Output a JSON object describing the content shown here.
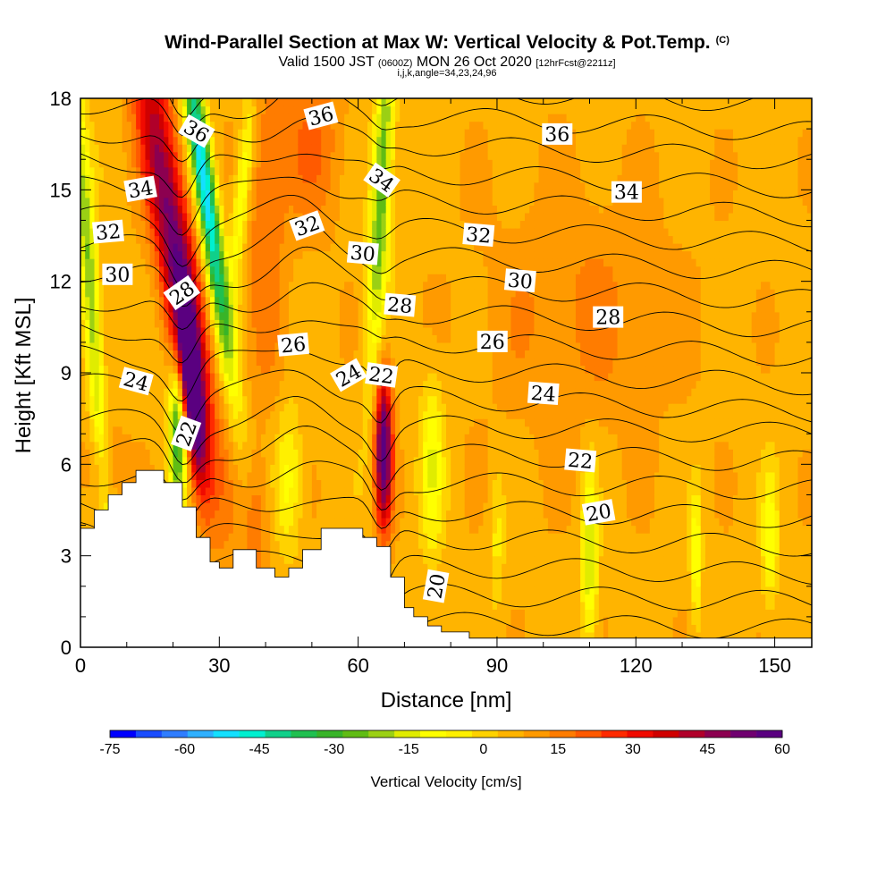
{
  "title": "Wind-Parallel Section at Max W: Vertical Velocity & Pot.Temp.",
  "title_badge": "(C)",
  "subtitle_main": "Valid 1500 JST",
  "subtitle_utc": "(0600Z)",
  "subtitle_date": "MON 26 Oct 2020",
  "subtitle_fcst": "[12hrFcst@2211z]",
  "subtitle_params": "i,j,k,angle=34,23,24,96",
  "chart_data": {
    "type": "heatmap",
    "xlabel": "Distance [nm]",
    "ylabel": "Height [Kft MSL]",
    "xlim": [
      0,
      158
    ],
    "ylim": [
      0,
      18
    ],
    "xticks": [
      0,
      30,
      60,
      90,
      120,
      150
    ],
    "yticks": [
      0,
      3,
      6,
      9,
      12,
      15,
      18
    ],
    "colorbar": {
      "label": "Vertical Velocity [cm/s]",
      "ticks": [
        -75,
        -60,
        -45,
        -30,
        -15,
        0,
        15,
        30,
        45,
        60
      ],
      "range": [
        -75,
        60
      ],
      "colors": [
        "#0000ff",
        "#1a4dff",
        "#2f7dff",
        "#2fb0ff",
        "#14e0ff",
        "#00f0d0",
        "#10d08a",
        "#20c050",
        "#38b428",
        "#60bc14",
        "#9bd014",
        "#e0ec00",
        "#ffff00",
        "#fff000",
        "#ffd200",
        "#ffb400",
        "#ff9a00",
        "#ff7c00",
        "#ff5a00",
        "#ff2a00",
        "#f00a00",
        "#d00000",
        "#b0002a",
        "#8c0050",
        "#700070",
        "#5a0080"
      ]
    },
    "theta_contour_labels": [
      "20",
      "22",
      "24",
      "26",
      "28",
      "30",
      "32",
      "34",
      "36"
    ],
    "theta_levels": [
      18,
      19,
      20,
      21,
      22,
      23,
      24,
      25,
      26,
      27,
      28,
      29,
      30,
      31,
      32,
      33,
      34,
      35,
      36,
      37
    ],
    "terrain_profile": [
      [
        0,
        3.9
      ],
      [
        3,
        3.9
      ],
      [
        3,
        4.5
      ],
      [
        6,
        4.5
      ],
      [
        6,
        5.0
      ],
      [
        9,
        5.0
      ],
      [
        9,
        5.4
      ],
      [
        12,
        5.4
      ],
      [
        12,
        5.8
      ],
      [
        18,
        5.8
      ],
      [
        18,
        5.4
      ],
      [
        22,
        5.4
      ],
      [
        22,
        4.6
      ],
      [
        25,
        4.6
      ],
      [
        25,
        3.6
      ],
      [
        28,
        3.6
      ],
      [
        28,
        2.8
      ],
      [
        30,
        2.8
      ],
      [
        30,
        2.6
      ],
      [
        33,
        2.6
      ],
      [
        33,
        3.2
      ],
      [
        38,
        3.2
      ],
      [
        38,
        2.6
      ],
      [
        42,
        2.6
      ],
      [
        42,
        2.3
      ],
      [
        45,
        2.3
      ],
      [
        45,
        2.6
      ],
      [
        48,
        2.6
      ],
      [
        48,
        3.2
      ],
      [
        52,
        3.2
      ],
      [
        52,
        3.9
      ],
      [
        61,
        3.9
      ],
      [
        61,
        3.6
      ],
      [
        64,
        3.6
      ],
      [
        64,
        3.3
      ],
      [
        67,
        3.3
      ],
      [
        67,
        2.3
      ],
      [
        70,
        2.3
      ],
      [
        70,
        1.3
      ],
      [
        72,
        1.3
      ],
      [
        72,
        1.0
      ],
      [
        75,
        1.0
      ],
      [
        75,
        0.7
      ],
      [
        78,
        0.7
      ],
      [
        78,
        0.5
      ],
      [
        84,
        0.5
      ],
      [
        84,
        0.3
      ],
      [
        158,
        0.3
      ]
    ],
    "w_features": [
      {
        "x": 20,
        "z": 13.5,
        "w": 45,
        "sx": 3,
        "sz": 5,
        "tilt": -0.35
      },
      {
        "x": 24,
        "z": 8.5,
        "w": 55,
        "sx": 1.6,
        "sz": 2.2,
        "tilt": -0.2
      },
      {
        "x": 27,
        "z": 15,
        "w": -60,
        "sx": 1.6,
        "sz": 4,
        "tilt": -0.3
      },
      {
        "x": 21,
        "z": 7,
        "w": -40,
        "sx": 1.4,
        "sz": 1.8,
        "tilt": 0
      },
      {
        "x": 2,
        "z": 12,
        "w": -30,
        "sx": 1.3,
        "sz": 5,
        "tilt": -0.15
      },
      {
        "x": 35,
        "z": 15,
        "w": -20,
        "sx": 1.2,
        "sz": 2.5,
        "tilt": 0.2
      },
      {
        "x": 40,
        "z": 14,
        "w": 12,
        "sx": 3,
        "sz": 4,
        "tilt": 0
      },
      {
        "x": 50,
        "z": 16.5,
        "w": 12,
        "sx": 5,
        "sz": 2,
        "tilt": 0
      },
      {
        "x": 65,
        "z": 15,
        "w": -35,
        "sx": 1.5,
        "sz": 4,
        "tilt": 0.1
      },
      {
        "x": 65.5,
        "z": 6.5,
        "w": 55,
        "sx": 1.3,
        "sz": 1.8,
        "tilt": 0
      },
      {
        "x": 45,
        "z": 5.5,
        "w": -15,
        "sx": 2,
        "sz": 1.6,
        "tilt": 0
      },
      {
        "x": 38,
        "z": 4,
        "w": 12,
        "sx": 2,
        "sz": 1.5,
        "tilt": 0
      },
      {
        "x": 76,
        "z": 6,
        "w": -18,
        "sx": 1.8,
        "sz": 2,
        "tilt": 0
      },
      {
        "x": 90,
        "z": 3.5,
        "w": -10,
        "sx": 1,
        "sz": 1.5,
        "tilt": 0
      },
      {
        "x": 110,
        "z": 3,
        "w": -25,
        "sx": 1.2,
        "sz": 2,
        "tilt": 0
      },
      {
        "x": 133,
        "z": 3,
        "w": -20,
        "sx": 0.8,
        "sz": 1.5,
        "tilt": 0
      },
      {
        "x": 149,
        "z": 3.5,
        "w": -18,
        "sx": 1.2,
        "sz": 1.5,
        "tilt": 0
      },
      {
        "x": 108,
        "z": 11,
        "w": 8,
        "sx": 15,
        "sz": 3,
        "tilt": 0
      },
      {
        "x": 5,
        "z": 6,
        "w": 10,
        "sx": 3,
        "sz": 1,
        "tilt": 0
      }
    ]
  }
}
